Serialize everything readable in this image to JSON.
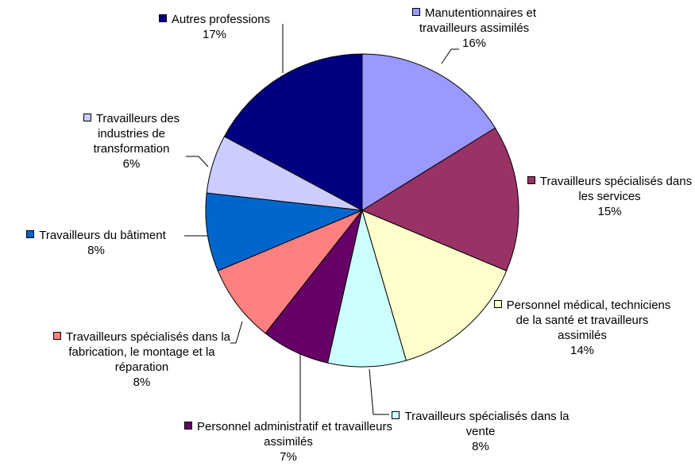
{
  "chart_data": {
    "type": "pie",
    "categories": [
      "Manutentionnaires et travailleurs assimilés",
      "Travailleurs spécialisés dans les services",
      "Personnel médical, techniciens de la santé et travailleurs assimilés",
      "Travailleurs spécialisés dans la vente",
      "Personnel administratif et travailleurs assimilés",
      "Travailleurs spécialisés dans la fabrication, le montage et la réparation",
      "Travailleurs du bâtiment",
      "Travailleurs des industries de transformation",
      "Autres professions"
    ],
    "values": [
      16,
      15,
      14,
      8,
      7,
      8,
      8,
      6,
      17
    ],
    "value_labels": [
      "16%",
      "15%",
      "14%",
      "8%",
      "7%",
      "8%",
      "8%",
      "6%",
      "17%"
    ],
    "colors": [
      "#9999ff",
      "#993366",
      "#ffffcc",
      "#ccffff",
      "#660066",
      "#ff8080",
      "#0066cc",
      "#ccccff",
      "#000080"
    ]
  }
}
